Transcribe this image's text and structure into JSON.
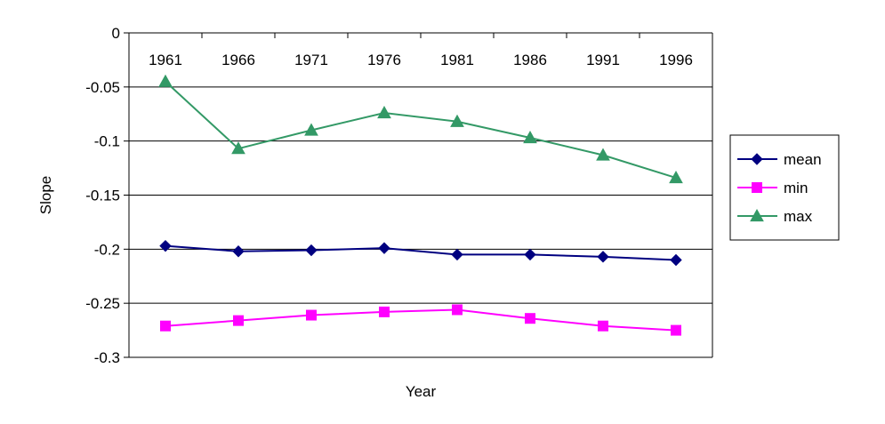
{
  "chart_data": {
    "type": "line",
    "title": "",
    "xlabel": "Year",
    "ylabel": "Slope",
    "x": [
      1961,
      1966,
      1971,
      1976,
      1981,
      1986,
      1991,
      1996
    ],
    "x_tick_labels": [
      "1961",
      "1966",
      "1971",
      "1976",
      "1981",
      "1986",
      "1991",
      "1996"
    ],
    "y_ticks": [
      0,
      -0.05,
      -0.1,
      -0.15,
      -0.2,
      -0.25,
      -0.3
    ],
    "y_tick_labels": [
      "0",
      "-0.05",
      "-0.1",
      "-0.15",
      "-0.2",
      "-0.25",
      "-0.3"
    ],
    "ylim": [
      -0.3,
      0
    ],
    "grid": "horizontal",
    "legend_position": "right",
    "series": [
      {
        "name": "mean",
        "color": "#000080",
        "marker": "diamond",
        "values": [
          -0.197,
          -0.202,
          -0.201,
          -0.199,
          -0.205,
          -0.205,
          -0.207,
          -0.21
        ]
      },
      {
        "name": "min",
        "color": "#ff00ff",
        "marker": "square",
        "values": [
          -0.271,
          -0.266,
          -0.261,
          -0.258,
          -0.256,
          -0.264,
          -0.271,
          -0.275
        ]
      },
      {
        "name": "max",
        "color": "#339966",
        "marker": "triangle",
        "values": [
          -0.045,
          -0.107,
          -0.09,
          -0.074,
          -0.082,
          -0.097,
          -0.113,
          -0.134
        ]
      }
    ]
  }
}
